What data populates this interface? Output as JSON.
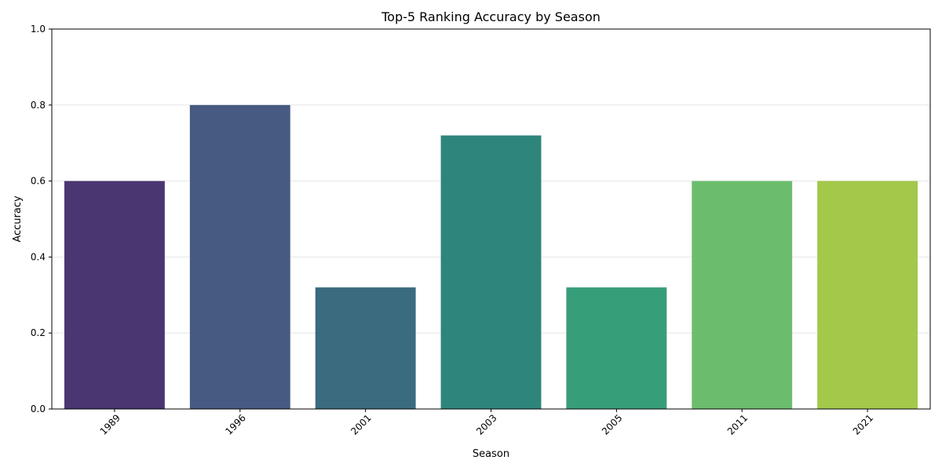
{
  "chart_data": {
    "type": "bar",
    "title": "Top-5 Ranking Accuracy by Season",
    "xlabel": "Season",
    "ylabel": "Accuracy",
    "categories": [
      "1989",
      "1996",
      "2001",
      "2003",
      "2005",
      "2011",
      "2021"
    ],
    "values": [
      0.6,
      0.8,
      0.32,
      0.72,
      0.32,
      0.6,
      0.6
    ],
    "colors": [
      "#4a3671",
      "#465a82",
      "#3a6b7e",
      "#2e857c",
      "#379e7a",
      "#6bbd6d",
      "#a3c84a"
    ],
    "ylim": [
      0,
      1.0
    ],
    "yticks": [
      "0.0",
      "0.2",
      "0.4",
      "0.6",
      "0.8",
      "1.0"
    ],
    "grid": "horizontal",
    "xtick_rotation": 45
  }
}
